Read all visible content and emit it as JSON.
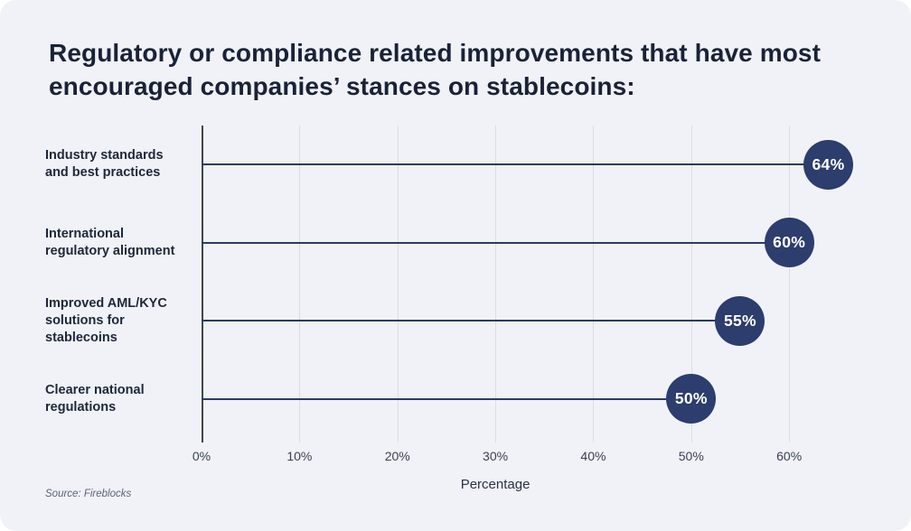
{
  "title": "Regulatory or compliance related improvements that have most encouraged companies’ stances on stablecoins:",
  "source": "Source: Fireblocks",
  "chart_data": {
    "type": "bar",
    "subtype": "horizontal-lollipop",
    "title": "Regulatory or compliance related improvements that have most encouraged companies’ stances on stablecoins:",
    "categories": [
      "Industry standards and best practices",
      "International regulatory alignment",
      "Improved AML/KYC solutions for stablecoins",
      "Clearer national regulations"
    ],
    "values": [
      64,
      60,
      55,
      50
    ],
    "value_labels": [
      "64%",
      "60%",
      "55%",
      "50%"
    ],
    "xlabel": "Percentage",
    "ylabel": "",
    "xlim": [
      0,
      68.2
    ],
    "xticks": [
      0,
      10,
      20,
      30,
      40,
      50,
      60
    ],
    "xtick_labels": [
      "0%",
      "10%",
      "20%",
      "30%",
      "40%",
      "50%",
      "60%"
    ],
    "grid": "vertical",
    "legend": "none",
    "colors": {
      "background": "#f0f2f7",
      "accent_navy": "#2c3d6e",
      "stem_line": "#2b3a66",
      "gridline": "#d9dde6",
      "axis_line": "#3e4659",
      "title_text": "#1a2238",
      "category_text": "#1e2739",
      "tick_text": "#3a4152",
      "bubble_text": "#ffffff",
      "source_text": "#5b6273"
    }
  }
}
